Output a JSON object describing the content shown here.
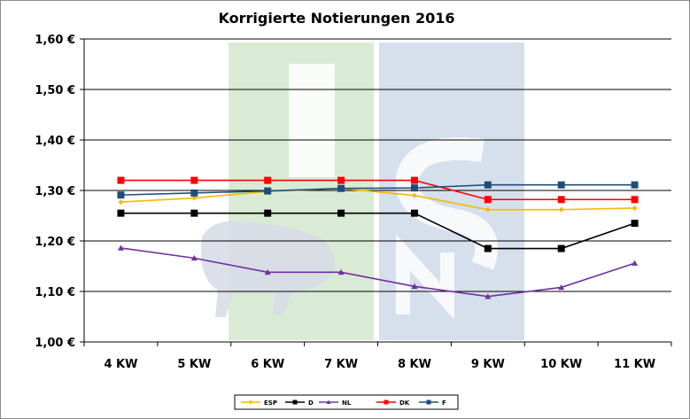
{
  "chart_data": {
    "type": "line",
    "title": "Korrigierte Notierungen 2016",
    "xlabel": "",
    "ylabel": "",
    "categories": [
      "4 KW",
      "5 KW",
      "6 KW",
      "7 KW",
      "8 KW",
      "9 KW",
      "10 KW",
      "11 KW"
    ],
    "ylim": [
      1.0,
      1.6
    ],
    "yticks": [
      "1,00 €",
      "1,10 €",
      "1,20 €",
      "1,30 €",
      "1,40 €",
      "1,50 €",
      "1,60 €"
    ],
    "grid": true,
    "legend_position": "bottom",
    "series": [
      {
        "name": "ESP",
        "color": "#f5b800",
        "marker": "diamond",
        "values": [
          1.277,
          1.285,
          1.298,
          1.304,
          1.29,
          1.262,
          1.262,
          1.265
        ]
      },
      {
        "name": "D",
        "color": "#000000",
        "marker": "square",
        "values": [
          1.255,
          1.255,
          1.255,
          1.255,
          1.255,
          1.185,
          1.185,
          1.235
        ]
      },
      {
        "name": "NL",
        "color": "#7030a0",
        "marker": "triangle",
        "values": [
          1.186,
          1.166,
          1.138,
          1.138,
          1.11,
          1.09,
          1.108,
          1.156
        ]
      },
      {
        "name": "DK",
        "color": "#ff0000",
        "marker": "square",
        "values": [
          1.32,
          1.32,
          1.32,
          1.32,
          1.32,
          1.282,
          1.282,
          1.282
        ]
      },
      {
        "name": "F",
        "color": "#1f4e79",
        "marker": "square",
        "values": [
          1.291,
          1.295,
          1.299,
          1.304,
          1.305,
          1.311,
          1.311,
          1.311
        ]
      }
    ]
  },
  "watermark": {
    "text": "ISN",
    "colors": [
      "#d9ebd5",
      "#d6dfec"
    ]
  }
}
